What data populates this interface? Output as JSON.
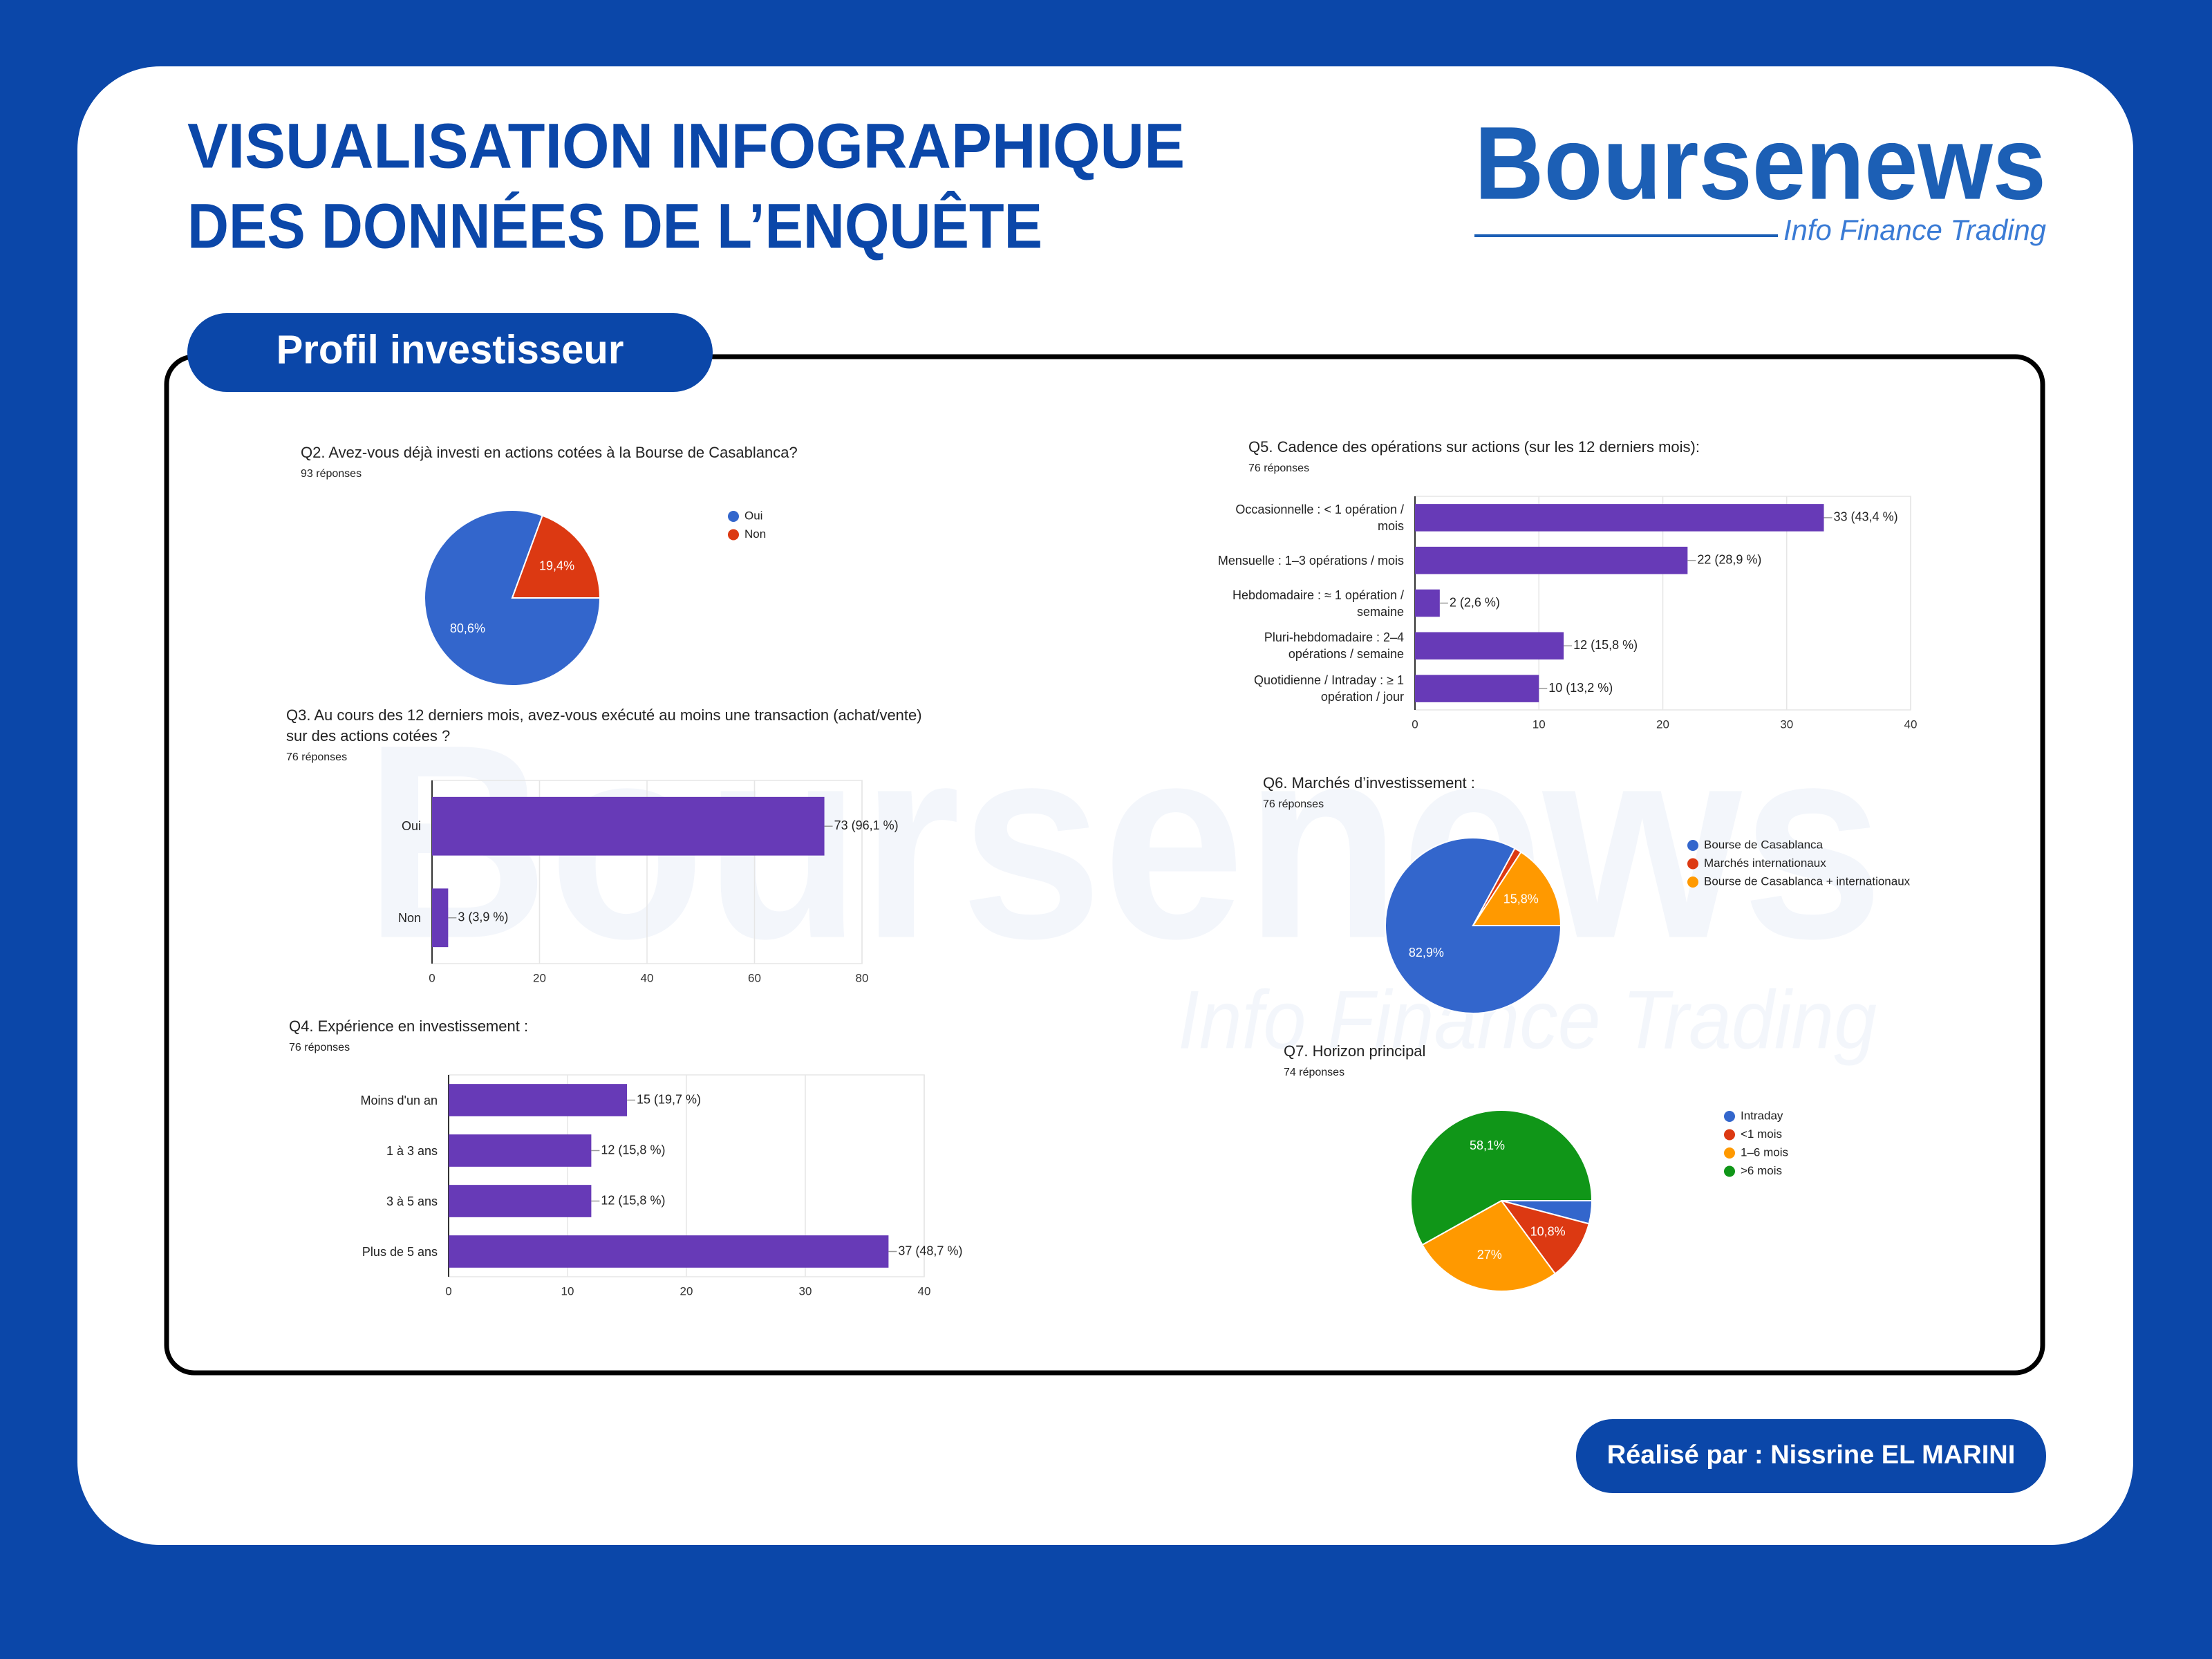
{
  "header": {
    "title": [
      "VISUALISATION INFOGRAPHIQUE",
      "DES DONNÉES DE L’ENQUÊTE"
    ],
    "logo": {
      "name": "Boursenews",
      "tagline": "Info Finance Trading"
    }
  },
  "section": "Profil investisseur",
  "footer": "Réalisé par : Nissrine EL MARINI",
  "chart_data": [
    {
      "type": "pie",
      "title": "Q2. Avez-vous déjà investi en actions cotées à la Bourse de Casablanca?",
      "subtitle": "93 réponses",
      "categories": [
        "Oui",
        "Non"
      ],
      "values": [
        80.6,
        19.4
      ],
      "value_labels": [
        "80,6%",
        "19,4%"
      ],
      "colors": [
        "#3366cc",
        "#dc3912"
      ]
    },
    {
      "type": "bar",
      "orientation": "horizontal",
      "title": "Q3. Au cours des 12 derniers mois, avez-vous exécuté au moins une transaction (achat/vente) sur des actions cotées ?",
      "subtitle": "76 réponses",
      "categories": [
        "Oui",
        "Non"
      ],
      "values": [
        73,
        3
      ],
      "value_labels": [
        "73 (96,1 %)",
        "3 (3,9 %)"
      ],
      "color": "#673ab7",
      "xlim": [
        0,
        80
      ],
      "xticks": [
        0,
        20,
        40,
        60,
        80
      ],
      "grid": true
    },
    {
      "type": "bar",
      "orientation": "horizontal",
      "title": "Q4. Expérience en investissement :",
      "subtitle": "76 réponses",
      "categories": [
        "Moins d'un an",
        "1 à 3 ans",
        "3 à 5 ans",
        "Plus de 5 ans"
      ],
      "values": [
        15,
        12,
        12,
        37
      ],
      "value_labels": [
        "15 (19,7 %)",
        "12 (15,8 %)",
        "12 (15,8 %)",
        "37 (48,7 %)"
      ],
      "color": "#673ab7",
      "xlim": [
        0,
        40
      ],
      "xticks": [
        0,
        10,
        20,
        30,
        40
      ],
      "grid": true
    },
    {
      "type": "bar",
      "orientation": "horizontal",
      "title": "Q5. Cadence des opérations sur actions (sur les 12 derniers mois):",
      "subtitle": "76 réponses",
      "categories": [
        "Occasionnelle : < 1 opération / mois",
        "Mensuelle : 1–3 opérations / mois",
        "Hebdomadaire : ≈ 1 opération / semaine",
        "Pluri-hebdomadaire : 2–4 opérations / semaine",
        "Quotidienne / Intraday : ≥ 1 opération / jour"
      ],
      "values": [
        33,
        22,
        2,
        12,
        10
      ],
      "value_labels": [
        "33 (43,4 %)",
        "22 (28,9 %)",
        "2 (2,6 %)",
        "12 (15,8 %)",
        "10 (13,2 %)"
      ],
      "color": "#673ab7",
      "xlim": [
        0,
        40
      ],
      "xticks": [
        0,
        10,
        20,
        30,
        40
      ],
      "grid": true
    },
    {
      "type": "pie",
      "title": "Q6. Marchés d’investissement :",
      "subtitle": "76 réponses",
      "categories": [
        "Bourse de Casablanca",
        "Marchés internationaux",
        "Bourse de Casablanca + internationaux"
      ],
      "values": [
        82.9,
        1.3,
        15.8
      ],
      "value_labels": [
        "82,9%",
        null,
        "15,8%"
      ],
      "colors": [
        "#3366cc",
        "#dc3912",
        "#ff9900"
      ]
    },
    {
      "type": "pie",
      "title": "Q7. Horizon principal",
      "subtitle": "74 réponses",
      "categories": [
        "Intraday",
        "<1 mois",
        "1–6 mois",
        ">6 mois"
      ],
      "values": [
        4.1,
        10.8,
        27,
        58.1
      ],
      "value_labels": [
        null,
        "10,8%",
        "27%",
        "58,1%"
      ],
      "colors": [
        "#3366cc",
        "#dc3912",
        "#ff9900",
        "#109618"
      ]
    }
  ]
}
